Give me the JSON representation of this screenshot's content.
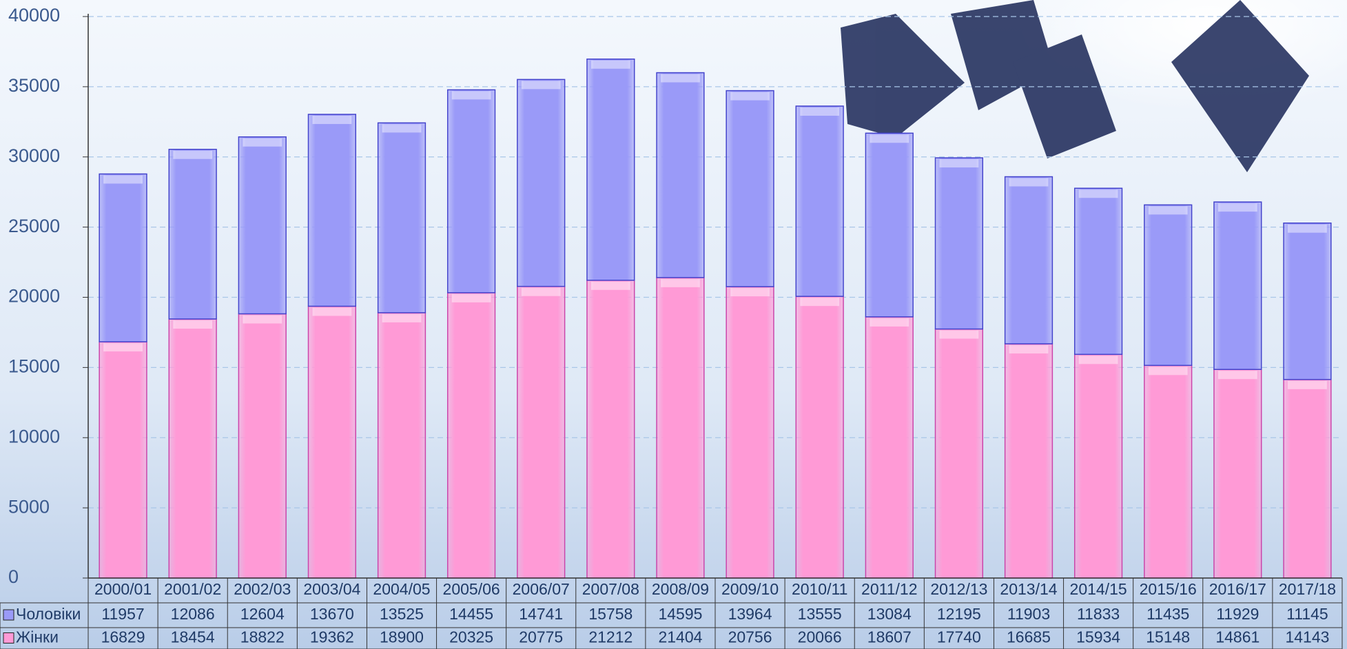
{
  "chart_data": {
    "type": "stacked_bar",
    "categories": [
      "2000/01",
      "2001/02",
      "2002/03",
      "2003/04",
      "2004/05",
      "2005/06",
      "2006/07",
      "2007/08",
      "2008/09",
      "2009/10",
      "2010/11",
      "2011/12",
      "2012/13",
      "2013/14",
      "2014/15",
      "2015/16",
      "2016/17",
      "2017/18"
    ],
    "series": [
      {
        "name": "Чоловіки",
        "color": "#9a9af8",
        "values": [
          11957,
          12086,
          12604,
          13670,
          13525,
          14455,
          14741,
          15758,
          14595,
          13964,
          13555,
          13084,
          12195,
          11903,
          11833,
          11435,
          11929,
          11145
        ]
      },
      {
        "name": "Жінки",
        "color": "#ff9ad6",
        "values": [
          16829,
          18454,
          18822,
          19362,
          18900,
          20325,
          20775,
          21212,
          21404,
          20756,
          20066,
          18607,
          17740,
          16685,
          15934,
          15148,
          14861,
          14143
        ]
      }
    ],
    "ylim": [
      0,
      40000
    ],
    "yticks": [
      0,
      5000,
      10000,
      15000,
      20000,
      25000,
      30000,
      35000,
      40000
    ],
    "grid": true
  }
}
